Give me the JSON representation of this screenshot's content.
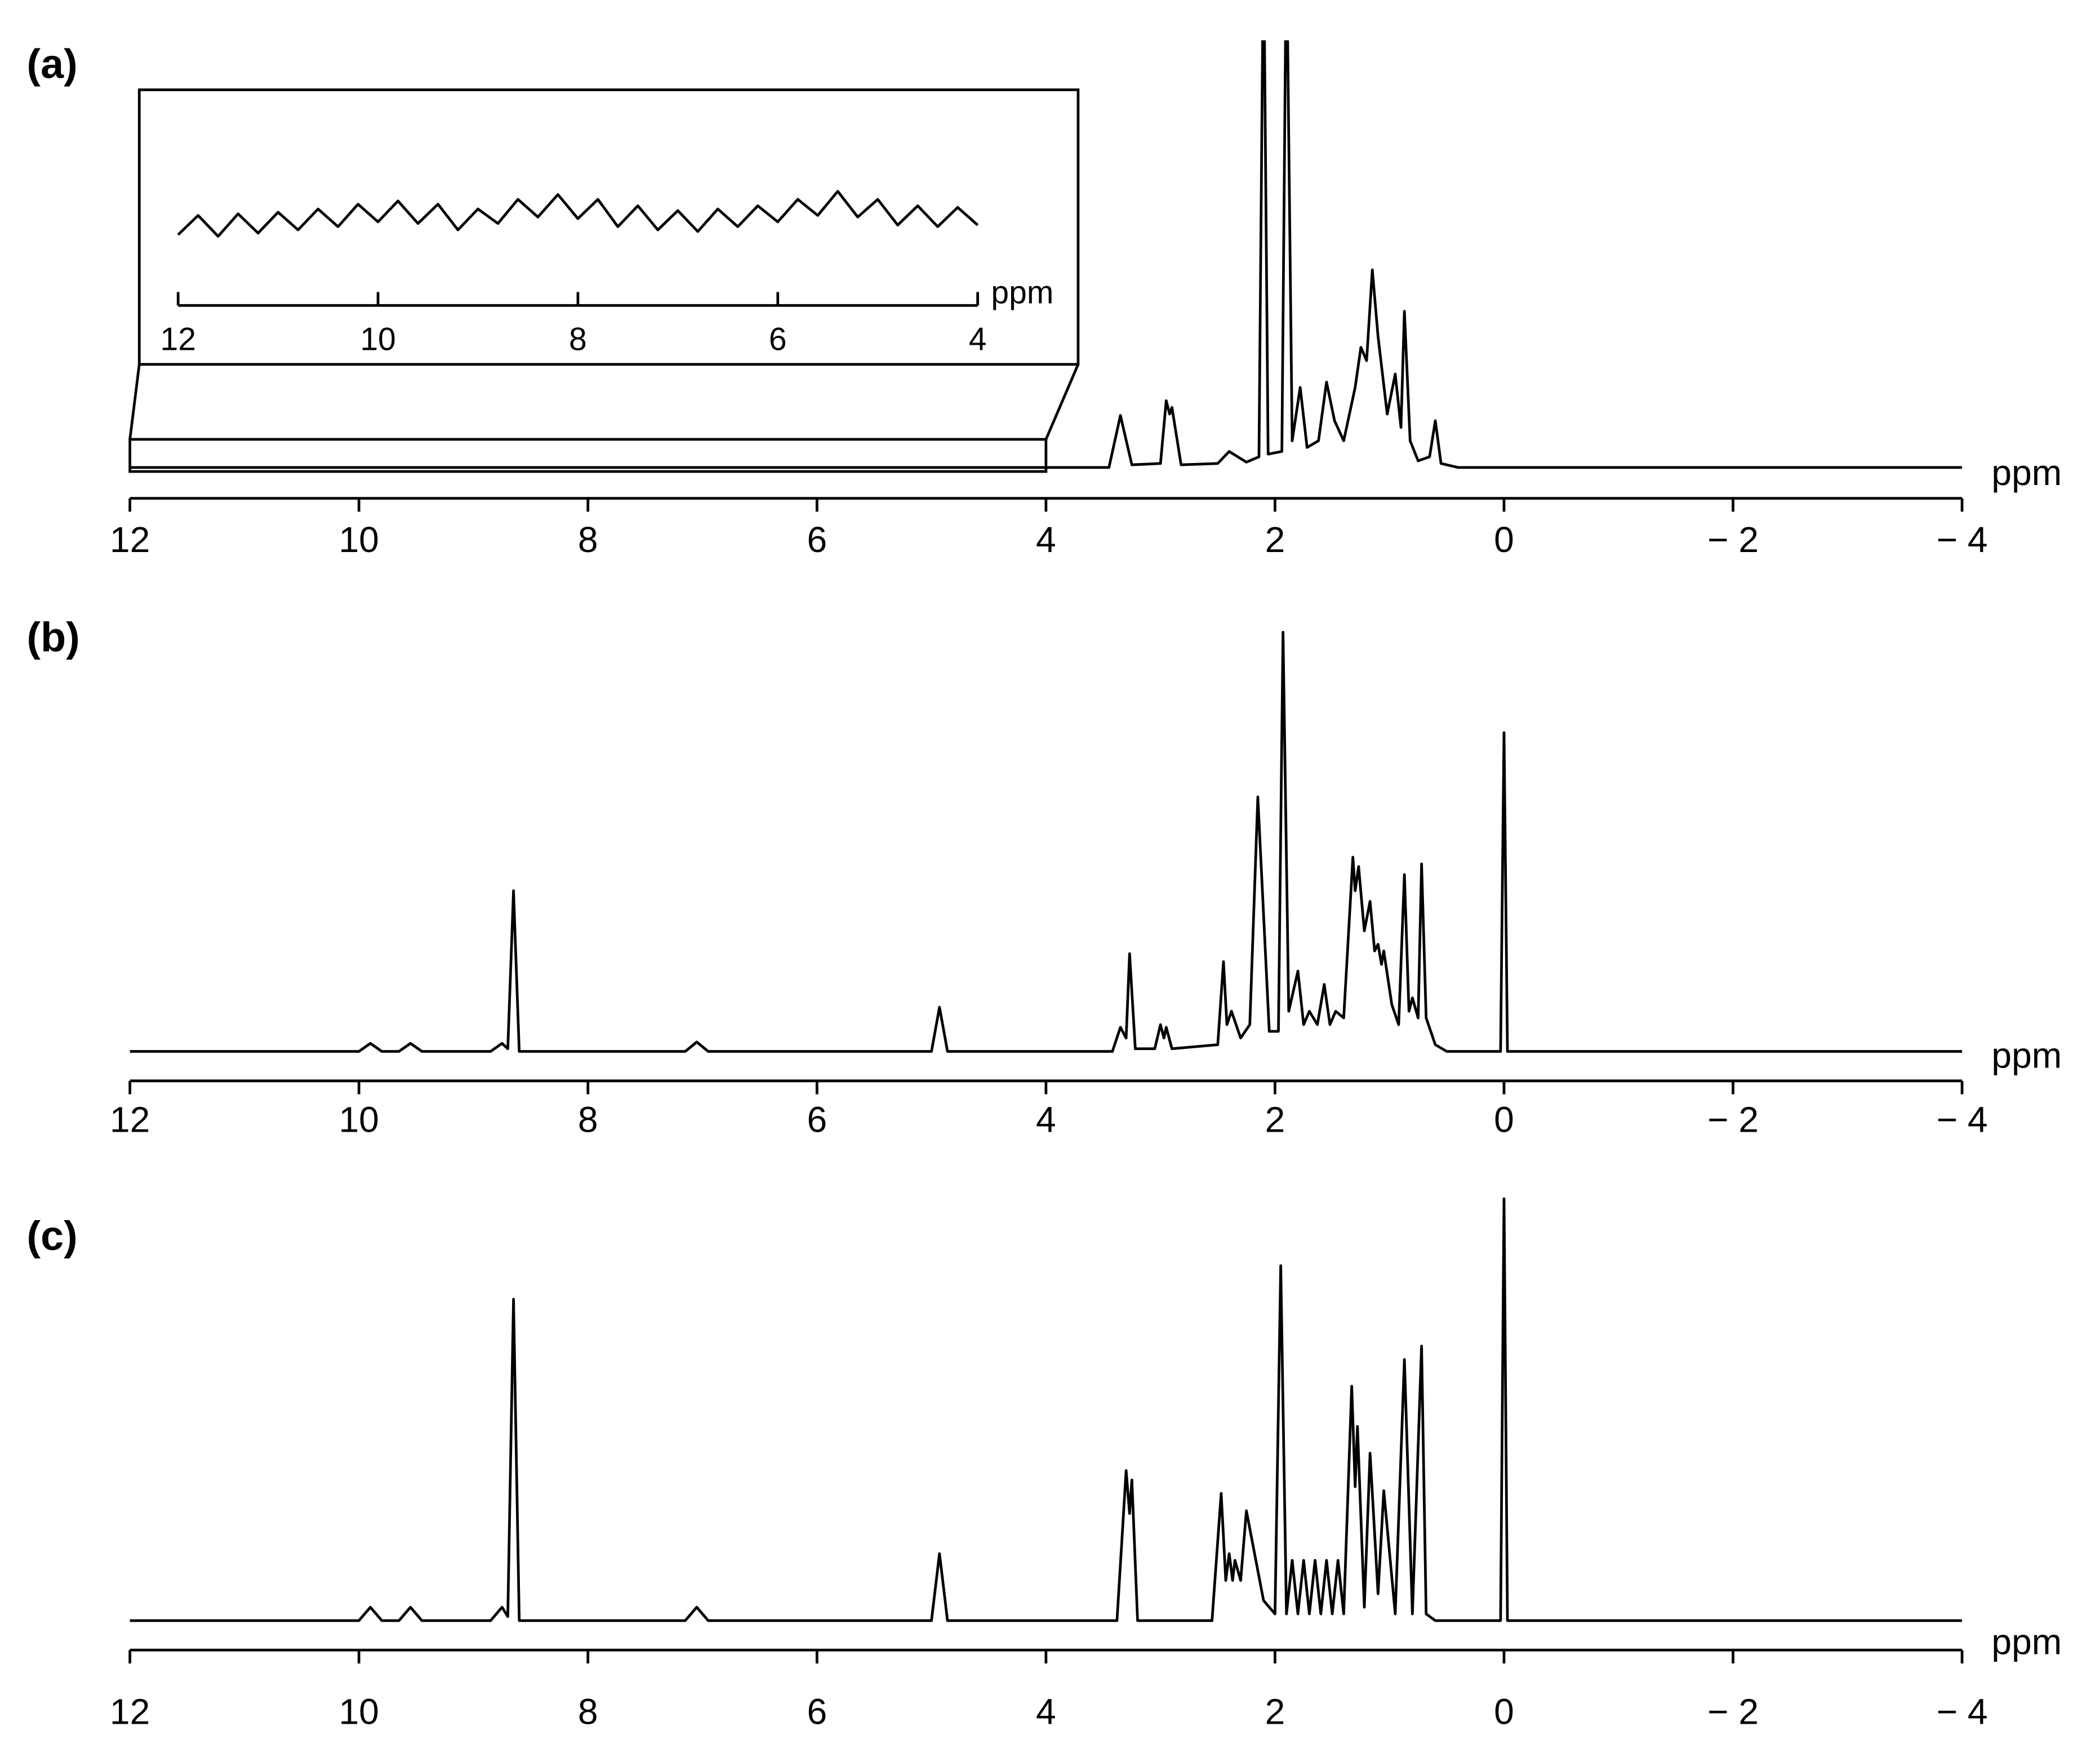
{
  "chart_data": [
    {
      "type": "line",
      "label": "(a)",
      "xlabel": "ppm",
      "color": "#000000",
      "xlim": [
        12,
        -4
      ],
      "ylim": [
        0,
        320
      ],
      "xticks": [
        12,
        10,
        8,
        6,
        4,
        2,
        0,
        {
          "value": -2,
          "label": "− 2"
        },
        {
          "value": -4,
          "label": "− 4"
        }
      ],
      "x": [
        12,
        3.45,
        3.35,
        3.25,
        3.0,
        2.95,
        2.92,
        2.9,
        2.82,
        2.5,
        2.4,
        2.25,
        2.14,
        2.1,
        2.06,
        1.94,
        1.9,
        1.85,
        1.78,
        1.72,
        1.62,
        1.55,
        1.48,
        1.4,
        1.3,
        1.25,
        1.2,
        1.15,
        1.1,
        1.02,
        0.95,
        0.9,
        0.87,
        0.82,
        0.75,
        0.65,
        0.6,
        0.55,
        0.4,
        -4
      ],
      "values": [
        0,
        0,
        39,
        2,
        3,
        50,
        40,
        45,
        2,
        3,
        12,
        4,
        8,
        400,
        10,
        12,
        400,
        20,
        60,
        15,
        20,
        64,
        35,
        20,
        60,
        90,
        80,
        148,
        98,
        40,
        70,
        30,
        117,
        20,
        5,
        8,
        35,
        3,
        0,
        0
      ]
    },
    {
      "type": "line",
      "xlabel": "ppm",
      "color": "#000000",
      "xlim": [
        12,
        4
      ],
      "ylim": [
        0,
        100
      ],
      "xticks": [
        12,
        10,
        8,
        6,
        4
      ],
      "x": [
        12,
        11.8,
        11.6,
        11.4,
        11.2,
        11,
        10.8,
        10.6,
        10.4,
        10.2,
        10,
        9.8,
        9.6,
        9.4,
        9.2,
        9,
        8.8,
        8.6,
        8.4,
        8.2,
        8,
        7.8,
        7.6,
        7.4,
        7.2,
        7,
        6.8,
        6.6,
        6.4,
        6.2,
        6,
        5.8,
        5.6,
        5.4,
        5.2,
        5,
        4.8,
        4.6,
        4.4,
        4.2,
        4
      ],
      "values": [
        44,
        56,
        43,
        57,
        45,
        58,
        47,
        60,
        49,
        63,
        52,
        65,
        51,
        63,
        47,
        60,
        51,
        66,
        55,
        69,
        54,
        66,
        49,
        62,
        47,
        59,
        46,
        60,
        49,
        62,
        52,
        66,
        56,
        71,
        55,
        66,
        50,
        62,
        49,
        61,
        50
      ]
    },
    {
      "type": "line",
      "label": "(b)",
      "xlabel": "ppm",
      "color": "#000000",
      "xlim": [
        12,
        -4
      ],
      "ylim": [
        0,
        320
      ],
      "xticks": [
        12,
        10,
        8,
        6,
        4,
        2,
        0,
        {
          "value": -2,
          "label": "− 2"
        },
        {
          "value": -4,
          "label": "− 4"
        }
      ],
      "x": [
        12,
        10.0,
        9.9,
        9.8,
        9.65,
        9.55,
        9.45,
        8.85,
        8.75,
        8.7,
        8.65,
        8.6,
        7.15,
        7.05,
        6.95,
        5.0,
        4.93,
        4.86,
        3.42,
        3.35,
        3.3,
        3.27,
        3.22,
        3.05,
        3.0,
        2.97,
        2.95,
        2.9,
        2.5,
        2.45,
        2.42,
        2.38,
        2.3,
        2.22,
        2.15,
        2.05,
        1.97,
        1.93,
        1.88,
        1.8,
        1.75,
        1.7,
        1.63,
        1.57,
        1.52,
        1.47,
        1.4,
        1.32,
        1.3,
        1.27,
        1.22,
        1.17,
        1.13,
        1.1,
        1.07,
        1.05,
        0.98,
        0.92,
        0.87,
        0.83,
        0.8,
        0.75,
        0.72,
        0.68,
        0.6,
        0.5,
        0.03,
        0,
        -0.03,
        -4
      ],
      "values": [
        0,
        0,
        6,
        0,
        0,
        6,
        0,
        0,
        6,
        2,
        120,
        0,
        0,
        7,
        0,
        0,
        33,
        0,
        0,
        18,
        10,
        73,
        2,
        2,
        20,
        10,
        18,
        2,
        5,
        67,
        20,
        30,
        10,
        20,
        190,
        15,
        15,
        313,
        30,
        60,
        20,
        30,
        20,
        50,
        20,
        30,
        25,
        145,
        120,
        138,
        90,
        112,
        75,
        80,
        65,
        75,
        35,
        20,
        132,
        30,
        40,
        25,
        140,
        25,
        5,
        0,
        0,
        238,
        0,
        0
      ]
    },
    {
      "type": "line",
      "label": "(c)",
      "xlabel": "ppm",
      "color": "#000000",
      "xlim": [
        12,
        -4
      ],
      "ylim": [
        0,
        320
      ],
      "xticks": [
        12,
        10,
        8,
        6,
        4,
        2,
        0,
        {
          "value": -2,
          "label": "− 2"
        },
        {
          "value": -4,
          "label": "− 4"
        }
      ],
      "x": [
        12,
        10.0,
        9.9,
        9.8,
        9.65,
        9.55,
        9.45,
        8.85,
        8.75,
        8.7,
        8.65,
        8.6,
        7.15,
        7.05,
        6.95,
        5.0,
        4.93,
        4.86,
        3.38,
        3.3,
        3.27,
        3.25,
        3.2,
        2.55,
        2.47,
        2.43,
        2.4,
        2.37,
        2.35,
        2.3,
        2.25,
        2.1,
        2.0,
        1.95,
        1.9,
        1.85,
        1.8,
        1.75,
        1.7,
        1.65,
        1.6,
        1.55,
        1.5,
        1.45,
        1.4,
        1.33,
        1.3,
        1.28,
        1.22,
        1.17,
        1.1,
        1.05,
        0.95,
        0.87,
        0.8,
        0.72,
        0.68,
        0.6,
        0.03,
        0,
        -0.03,
        -4
      ],
      "values": [
        0,
        0,
        10,
        0,
        0,
        10,
        0,
        0,
        10,
        3,
        240,
        0,
        0,
        10,
        0,
        0,
        50,
        0,
        0,
        112,
        80,
        105,
        0,
        0,
        95,
        30,
        50,
        30,
        45,
        30,
        82,
        15,
        5,
        265,
        5,
        45,
        5,
        45,
        5,
        45,
        5,
        45,
        5,
        45,
        5,
        175,
        100,
        145,
        10,
        125,
        20,
        97,
        5,
        195,
        5,
        205,
        5,
        0,
        0,
        315,
        0,
        0
      ]
    }
  ]
}
